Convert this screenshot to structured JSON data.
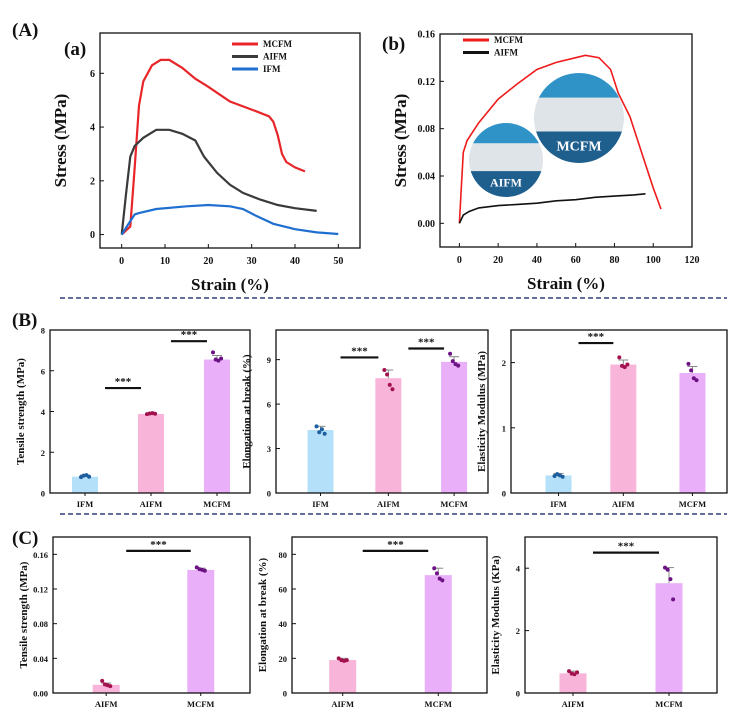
{
  "panels": {
    "A": "(A)",
    "a": "(a)",
    "b": "(b)",
    "B": "(B)",
    "C": "(C)"
  },
  "separator_color": "#2e3f7a",
  "chart_data": [
    {
      "id": "a",
      "type": "line",
      "xlabel": "Strain (%)",
      "ylabel": "Stress (MPa)",
      "xlim": [
        -5,
        55
      ],
      "ylim": [
        -0.5,
        7.5
      ],
      "xticks": [
        0,
        10,
        20,
        30,
        40,
        50
      ],
      "yticks": [
        0,
        2,
        4,
        6
      ],
      "legend": "top-right",
      "series": [
        {
          "name": "MCFM",
          "color": "#e8262a",
          "points": [
            [
              0,
              0
            ],
            [
              2,
              0.3
            ],
            [
              3,
              2.5
            ],
            [
              4,
              4.8
            ],
            [
              5,
              5.7
            ],
            [
              7,
              6.3
            ],
            [
              9,
              6.5
            ],
            [
              11,
              6.5
            ],
            [
              14,
              6.2
            ],
            [
              17,
              5.8
            ],
            [
              20,
              5.5
            ],
            [
              25,
              4.95
            ],
            [
              30,
              4.65
            ],
            [
              34,
              4.4
            ],
            [
              35,
              4.2
            ],
            [
              36,
              3.7
            ],
            [
              37,
              3.0
            ],
            [
              38,
              2.7
            ],
            [
              40,
              2.5
            ],
            [
              42.3,
              2.35
            ]
          ]
        },
        {
          "name": "AIFM",
          "color": "#3a3a3a",
          "points": [
            [
              0,
              0
            ],
            [
              1,
              1.5
            ],
            [
              2,
              2.9
            ],
            [
              3,
              3.3
            ],
            [
              5,
              3.6
            ],
            [
              8,
              3.9
            ],
            [
              11,
              3.9
            ],
            [
              14,
              3.75
            ],
            [
              17,
              3.5
            ],
            [
              19,
              2.9
            ],
            [
              22,
              2.3
            ],
            [
              25,
              1.85
            ],
            [
              28,
              1.55
            ],
            [
              32,
              1.3
            ],
            [
              36,
              1.1
            ],
            [
              40,
              0.98
            ],
            [
              45,
              0.88
            ]
          ]
        },
        {
          "name": "IFM",
          "color": "#1f6fd0",
          "points": [
            [
              0,
              0
            ],
            [
              2,
              0.5
            ],
            [
              3,
              0.75
            ],
            [
              4,
              0.8
            ],
            [
              8,
              0.95
            ],
            [
              15,
              1.05
            ],
            [
              20,
              1.1
            ],
            [
              25,
              1.05
            ],
            [
              28,
              0.95
            ],
            [
              31,
              0.7
            ],
            [
              35,
              0.4
            ],
            [
              40,
              0.2
            ],
            [
              45,
              0.08
            ],
            [
              50,
              0.02
            ]
          ]
        }
      ]
    },
    {
      "id": "b",
      "type": "line",
      "xlabel": "Strain (%)",
      "ylabel": "Stress (MPa)",
      "xlim": [
        -10,
        120
      ],
      "ylim": [
        -0.02,
        0.16
      ],
      "xticks": [
        0,
        20,
        40,
        60,
        80,
        100,
        120
      ],
      "yticks": [
        "0.00",
        "0.04",
        "0.08",
        "0.12",
        "0.16"
      ],
      "legend": "top-left",
      "series": [
        {
          "name": "MCFM",
          "color": "#ee1c1c",
          "points": [
            [
              0,
              0
            ],
            [
              1,
              0.03
            ],
            [
              2,
              0.06
            ],
            [
              4,
              0.07
            ],
            [
              10,
              0.085
            ],
            [
              20,
              0.105
            ],
            [
              30,
              0.118
            ],
            [
              40,
              0.13
            ],
            [
              50,
              0.136
            ],
            [
              60,
              0.14
            ],
            [
              65,
              0.142
            ],
            [
              72,
              0.14
            ],
            [
              78,
              0.13
            ],
            [
              82,
              0.11
            ],
            [
              88,
              0.09
            ],
            [
              95,
              0.055
            ],
            [
              100,
              0.03
            ],
            [
              104,
              0.012
            ]
          ]
        },
        {
          "name": "AIFM",
          "color": "#111111",
          "points": [
            [
              0,
              0
            ],
            [
              2,
              0.007
            ],
            [
              5,
              0.01
            ],
            [
              10,
              0.013
            ],
            [
              20,
              0.015
            ],
            [
              30,
              0.016
            ],
            [
              40,
              0.017
            ],
            [
              50,
              0.019
            ],
            [
              60,
              0.02
            ],
            [
              70,
              0.022
            ],
            [
              80,
              0.023
            ],
            [
              90,
              0.024
            ],
            [
              96,
              0.025
            ]
          ]
        }
      ],
      "insets": [
        {
          "label": "MCFM"
        },
        {
          "label": "AIFM"
        }
      ]
    },
    {
      "id": "B1",
      "type": "bar",
      "ylabel": "Tensile strength (MPa)",
      "ylim": [
        0,
        8
      ],
      "yticks": [
        0,
        2,
        4,
        6,
        8
      ],
      "categories": [
        "IFM",
        "AIFM",
        "MCFM"
      ],
      "values": [
        0.8,
        3.88,
        6.55
      ],
      "errors": [
        0.08,
        0.03,
        0.2
      ],
      "points": [
        [
          0.78,
          0.85,
          0.88,
          0.8
        ],
        [
          3.87,
          3.9,
          3.92,
          3.89
        ],
        [
          6.9,
          6.55,
          6.5,
          6.6
        ]
      ],
      "significance": [
        {
          "pair": [
            0,
            1
          ],
          "y": 5.15,
          "label": "***"
        },
        {
          "pair": [
            1,
            2
          ],
          "y": 7.45,
          "label": "***"
        }
      ]
    },
    {
      "id": "B2",
      "type": "bar",
      "ylabel": "Elongation at break (%)",
      "ylim": [
        0,
        11
      ],
      "yticks": [
        0,
        3,
        6,
        9
      ],
      "categories": [
        "IFM",
        "AIFM",
        "MCFM"
      ],
      "values": [
        4.25,
        7.75,
        8.85
      ],
      "errors": [
        0.25,
        0.55,
        0.35
      ],
      "points": [
        [
          4.5,
          4.1,
          4.3,
          4.0
        ],
        [
          8.3,
          8.0,
          7.3,
          7.0
        ],
        [
          9.4,
          8.9,
          8.7,
          8.6
        ]
      ],
      "significance": [
        {
          "pair": [
            0,
            1
          ],
          "y": 9.15,
          "label": "***"
        },
        {
          "pair": [
            1,
            2
          ],
          "y": 9.75,
          "label": "***"
        }
      ]
    },
    {
      "id": "B3",
      "type": "bar",
      "ylabel": "Elasticity Modulus (MPa)",
      "ylim": [
        0,
        2.5
      ],
      "yticks": [
        0,
        1,
        2
      ],
      "categories": [
        "IFM",
        "AIFM",
        "MCFM"
      ],
      "values": [
        0.27,
        1.97,
        1.84
      ],
      "errors": [
        0.03,
        0.07,
        0.1
      ],
      "points": [
        [
          0.26,
          0.29,
          0.27,
          0.25
        ],
        [
          2.08,
          1.95,
          1.93,
          1.97
        ],
        [
          1.98,
          1.88,
          1.76,
          1.73
        ]
      ],
      "significance": [
        {
          "pair": [
            0,
            1
          ],
          "y": 2.3,
          "label": "***"
        }
      ]
    },
    {
      "id": "C1",
      "type": "bar",
      "ylabel": "Tensile strength (MPa)",
      "ylim": [
        0,
        0.18
      ],
      "yticks": [
        "0.00",
        "0.04",
        "0.08",
        "0.12",
        "0.16"
      ],
      "categories": [
        "AIFM",
        "MCFM"
      ],
      "values": [
        0.0095,
        0.142
      ],
      "errors": [
        0.002,
        0.002
      ],
      "points": [
        [
          0.014,
          0.01,
          0.009,
          0.008
        ],
        [
          0.145,
          0.143,
          0.142,
          0.141
        ]
      ],
      "significance": [
        {
          "pair": [
            0,
            1
          ],
          "y": 0.164,
          "label": "***"
        }
      ]
    },
    {
      "id": "C2",
      "type": "bar",
      "ylabel": "Elongation at break (%)",
      "ylim": [
        0,
        90
      ],
      "yticks": [
        0,
        20,
        40,
        60,
        80
      ],
      "categories": [
        "AIFM",
        "MCFM"
      ],
      "values": [
        19,
        68
      ],
      "errors": [
        1,
        4
      ],
      "points": [
        [
          20,
          19,
          18.5,
          19
        ],
        [
          72,
          69,
          66,
          65
        ]
      ],
      "significance": [
        {
          "pair": [
            0,
            1
          ],
          "y": 82,
          "label": "***"
        }
      ]
    },
    {
      "id": "C3",
      "type": "bar",
      "ylabel": "Elasticity Modulus (KPa)",
      "ylim": [
        0,
        5
      ],
      "yticks": [
        0,
        2,
        4
      ],
      "categories": [
        "AIFM",
        "MCFM"
      ],
      "values": [
        0.63,
        3.52
      ],
      "errors": [
        0.07,
        0.5
      ],
      "points": [
        [
          0.7,
          0.62,
          0.6,
          0.66
        ],
        [
          4.02,
          3.95,
          3.65,
          3.0
        ]
      ],
      "significance": [
        {
          "pair": [
            0,
            1
          ],
          "y": 4.5,
          "label": "***"
        }
      ]
    }
  ],
  "bar_colors": {
    "IFM": "#b4e0fa",
    "AIFM": "#f9b4da",
    "MCFM": "#e9b0f9"
  },
  "dot_colors": {
    "IFM": "#1d5e9e",
    "AIFM": "#a3124f",
    "MCFM": "#6c1285"
  }
}
